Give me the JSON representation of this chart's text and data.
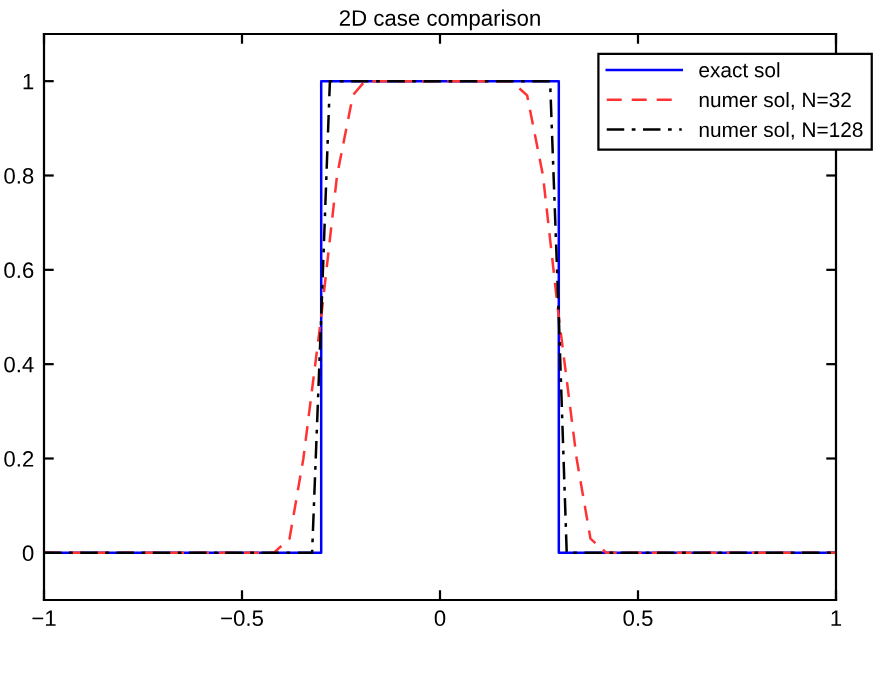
{
  "chart_data": {
    "type": "line",
    "title": "2D case comparison",
    "xlim": [
      -1,
      1
    ],
    "ylim": [
      -0.1,
      1.1
    ],
    "xticks": [
      {
        "value": -1,
        "label": "−1"
      },
      {
        "value": -0.5,
        "label": "−0.5"
      },
      0,
      0.5,
      1
    ],
    "yticks": [
      0,
      0.2,
      0.4,
      0.6,
      0.8,
      1
    ],
    "grid": false,
    "legend": "top right",
    "marker": "none",
    "series": [
      {
        "name": "exact sol",
        "color": "#0000ff",
        "line_style": "solid",
        "x": [
          -1,
          -0.3,
          -0.3,
          0.3,
          0.3,
          1
        ],
        "values": [
          0,
          0,
          1,
          1,
          0,
          0
        ]
      },
      {
        "name": "numer sol, N=32",
        "color": "#ff3333",
        "line_style": "dashed",
        "x": [
          -1,
          -0.42,
          -0.38,
          -0.345,
          -0.3,
          -0.26,
          -0.22,
          -0.19,
          0.18,
          0.22,
          0.26,
          0.3,
          0.345,
          0.38,
          0.42,
          1
        ],
        "values": [
          0,
          0,
          0.03,
          0.2,
          0.5,
          0.8,
          0.97,
          1,
          1,
          0.97,
          0.8,
          0.5,
          0.2,
          0.03,
          0,
          0
        ]
      },
      {
        "name": "numer sol, N=128",
        "color": "#000000",
        "line_style": "dashdot",
        "x": [
          -1,
          -0.323,
          -0.3,
          -0.278,
          0.278,
          0.3,
          0.32,
          1
        ],
        "values": [
          0,
          0,
          0.5,
          1,
          1,
          0.5,
          0,
          0
        ]
      }
    ]
  }
}
